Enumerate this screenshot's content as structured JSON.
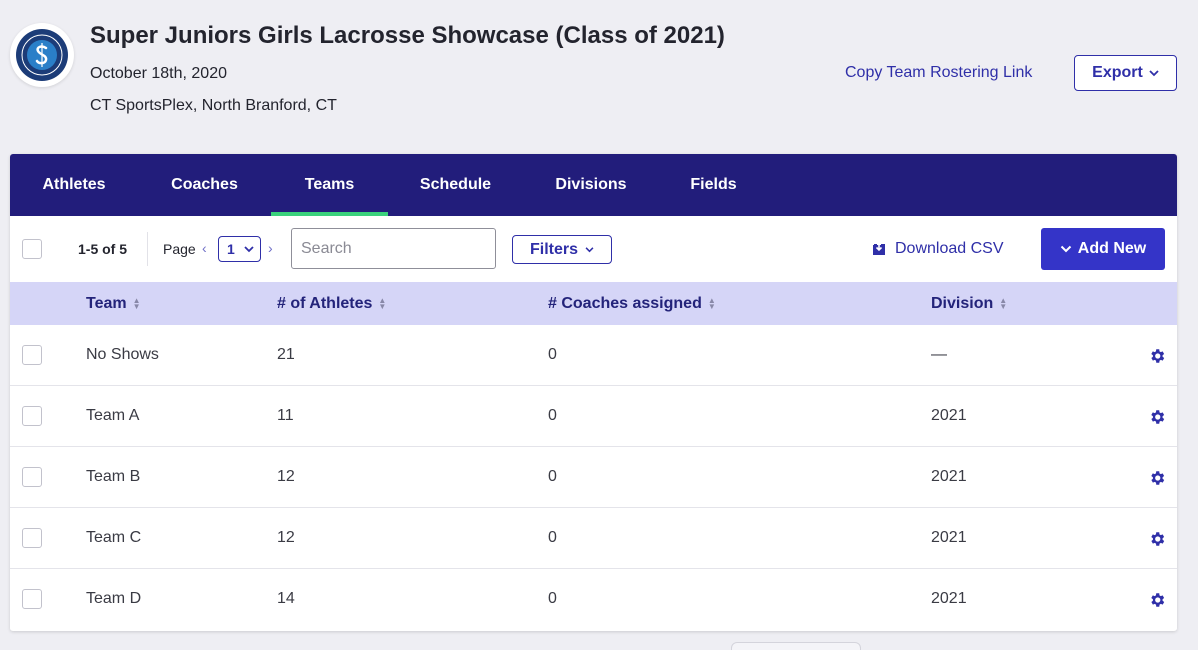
{
  "event": {
    "title": "Super Juniors Girls Lacrosse Showcase (Class of 2021)",
    "date": "October 18th, 2020",
    "location": "CT SportsPlex, North Branford, CT",
    "copy_link_label": "Copy Team Rostering Link",
    "export_label": "Export"
  },
  "tabs": [
    {
      "label": "Athletes",
      "active": false
    },
    {
      "label": "Coaches",
      "active": false
    },
    {
      "label": "Teams",
      "active": true
    },
    {
      "label": "Schedule",
      "active": false
    },
    {
      "label": "Divisions",
      "active": false
    },
    {
      "label": "Fields",
      "active": false
    }
  ],
  "toolbar": {
    "range": "1-5 of 5",
    "page_label": "Page",
    "page_value": "1",
    "search_placeholder": "Search",
    "filters_label": "Filters",
    "download_label": "Download CSV",
    "add_label": "Add New"
  },
  "table": {
    "columns": [
      "Team",
      "# of Athletes",
      "# Coaches assigned",
      "Division"
    ],
    "rows": [
      {
        "team": "No Shows",
        "athletes": "21",
        "coaches": "0",
        "division": "—"
      },
      {
        "team": "Team A",
        "athletes": "11",
        "coaches": "0",
        "division": "2021"
      },
      {
        "team": "Team B",
        "athletes": "12",
        "coaches": "0",
        "division": "2021"
      },
      {
        "team": "Team C",
        "athletes": "12",
        "coaches": "0",
        "division": "2021"
      },
      {
        "team": "Team D",
        "athletes": "14",
        "coaches": "0",
        "division": "2021"
      }
    ]
  },
  "colors": {
    "nav_bg": "#221d7b",
    "active_tab_indicator": "#3ad17c",
    "primary": "#3434c8",
    "link": "#2f2fa8",
    "table_header_bg": "#d5d5f7"
  }
}
